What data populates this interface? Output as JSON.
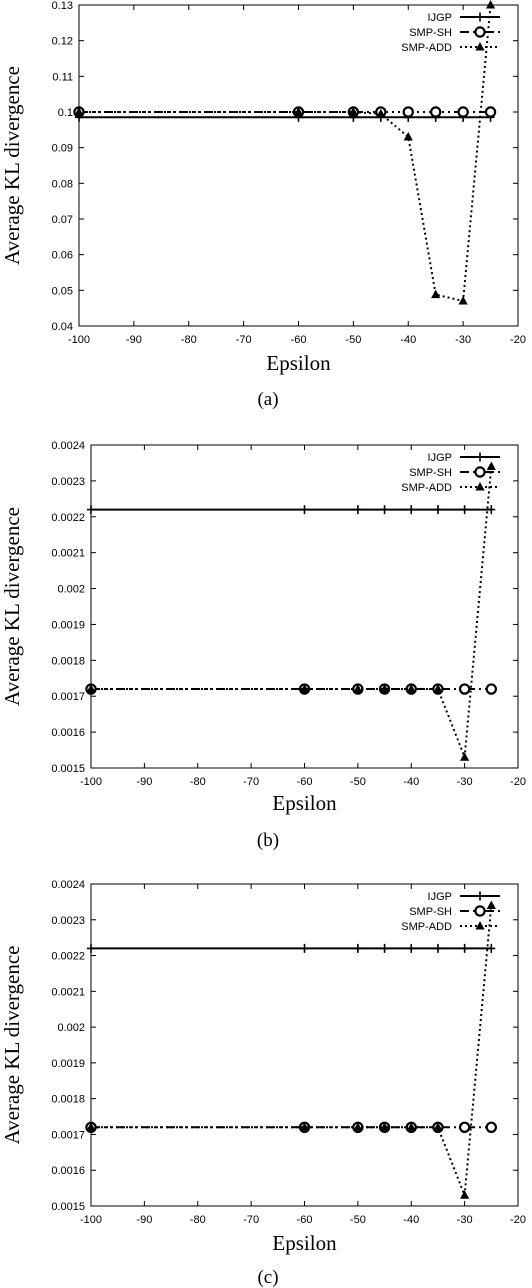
{
  "figure": {
    "captions": [
      "(a)",
      "(b)",
      "(c)"
    ]
  },
  "chart_data": [
    {
      "type": "line",
      "caption": "(a)",
      "xlabel": "Epsilon",
      "ylabel": "Average KL divergence",
      "xlim": [
        -100,
        -20
      ],
      "ylim": [
        0.04,
        0.13
      ],
      "xticks": [
        -100,
        -90,
        -80,
        -70,
        -60,
        -50,
        -40,
        -30,
        -20
      ],
      "yticks": [
        0.04,
        0.05,
        0.06,
        0.07,
        0.08,
        0.09,
        0.1,
        0.11,
        0.12,
        0.13
      ],
      "ytick_labels": [
        "0.04",
        "0.05",
        "0.06",
        "0.07",
        "0.08",
        "0.09",
        "0.1",
        "0.11",
        "0.12",
        "0.13"
      ],
      "legend_position": "top-right",
      "series": [
        {
          "name": "IJGP",
          "marker": "plus",
          "dash": "solid",
          "x": [
            -100,
            -60,
            -50,
            -45,
            -40,
            -35,
            -30,
            -25
          ],
          "y": [
            0.0985,
            0.0985,
            0.0985,
            0.0985,
            0.0985,
            0.0985,
            0.0985,
            0.0985
          ]
        },
        {
          "name": "SMP-SH",
          "marker": "circle",
          "dash": "dashed",
          "x": [
            -100,
            -60,
            -50,
            -45,
            -40,
            -35,
            -30,
            -25
          ],
          "y": [
            0.1,
            0.1,
            0.1,
            0.1,
            0.1,
            0.1,
            0.1,
            0.1
          ]
        },
        {
          "name": "SMP-ADD",
          "marker": "triangle",
          "dash": "dotted",
          "x": [
            -100,
            -60,
            -50,
            -45,
            -40,
            -35,
            -30,
            -25
          ],
          "y": [
            0.1,
            0.1,
            0.1,
            0.0995,
            0.093,
            0.0488,
            0.047,
            0.13
          ]
        }
      ]
    },
    {
      "type": "line",
      "caption": "(b)",
      "xlabel": "Epsilon",
      "ylabel": "Average KL divergence",
      "xlim": [
        -100,
        -20
      ],
      "ylim": [
        0.0015,
        0.0024
      ],
      "xticks": [
        -100,
        -90,
        -80,
        -70,
        -60,
        -50,
        -40,
        -30,
        -20
      ],
      "yticks": [
        0.0015,
        0.0016,
        0.0017,
        0.0018,
        0.0019,
        0.002,
        0.0021,
        0.0022,
        0.0023,
        0.0024
      ],
      "ytick_labels": [
        "0.0015",
        "0.0016",
        "0.0017",
        "0.0018",
        "0.0019",
        "0.002",
        "0.0021",
        "0.0022",
        "0.0023",
        "0.0024"
      ],
      "legend_position": "top-right",
      "series": [
        {
          "name": "IJGP",
          "marker": "plus",
          "dash": "solid",
          "x": [
            -100,
            -60,
            -50,
            -45,
            -40,
            -35,
            -30,
            -25
          ],
          "y": [
            0.00222,
            0.00222,
            0.00222,
            0.00222,
            0.00222,
            0.00222,
            0.00222,
            0.00222
          ]
        },
        {
          "name": "SMP-SH",
          "marker": "circle",
          "dash": "dashed",
          "x": [
            -100,
            -60,
            -50,
            -45,
            -40,
            -35,
            -30,
            -25
          ],
          "y": [
            0.00172,
            0.00172,
            0.00172,
            0.00172,
            0.00172,
            0.00172,
            0.00172,
            0.00172
          ]
        },
        {
          "name": "SMP-ADD",
          "marker": "triangle",
          "dash": "dotted",
          "x": [
            -100,
            -60,
            -50,
            -45,
            -40,
            -35,
            -30,
            -25
          ],
          "y": [
            0.00172,
            0.00172,
            0.00172,
            0.00172,
            0.00172,
            0.00172,
            0.00153,
            0.00234
          ]
        }
      ]
    },
    {
      "type": "line",
      "caption": "(c)",
      "xlabel": "Epsilon",
      "ylabel": "Average KL divergence",
      "xlim": [
        -100,
        -20
      ],
      "ylim": [
        0.0015,
        0.0024
      ],
      "xticks": [
        -100,
        -90,
        -80,
        -70,
        -60,
        -50,
        -40,
        -30,
        -20
      ],
      "yticks": [
        0.0015,
        0.0016,
        0.0017,
        0.0018,
        0.0019,
        0.002,
        0.0021,
        0.0022,
        0.0023,
        0.0024
      ],
      "ytick_labels": [
        "0.0015",
        "0.0016",
        "0.0017",
        "0.0018",
        "0.0019",
        "0.002",
        "0.0021",
        "0.0022",
        "0.0023",
        "0.0024"
      ],
      "legend_position": "top-right",
      "series": [
        {
          "name": "IJGP",
          "marker": "plus",
          "dash": "solid",
          "x": [
            -100,
            -60,
            -50,
            -45,
            -40,
            -35,
            -30,
            -25
          ],
          "y": [
            0.00222,
            0.00222,
            0.00222,
            0.00222,
            0.00222,
            0.00222,
            0.00222,
            0.00222
          ]
        },
        {
          "name": "SMP-SH",
          "marker": "circle",
          "dash": "dashed",
          "x": [
            -100,
            -60,
            -50,
            -45,
            -40,
            -35,
            -30,
            -25
          ],
          "y": [
            0.00172,
            0.00172,
            0.00172,
            0.00172,
            0.00172,
            0.00172,
            0.00172,
            0.00172
          ]
        },
        {
          "name": "SMP-ADD",
          "marker": "triangle",
          "dash": "dotted",
          "x": [
            -100,
            -60,
            -50,
            -45,
            -40,
            -35,
            -30,
            -25
          ],
          "y": [
            0.00172,
            0.00172,
            0.00172,
            0.00172,
            0.00172,
            0.00172,
            0.00153,
            0.00234
          ]
        }
      ]
    }
  ]
}
